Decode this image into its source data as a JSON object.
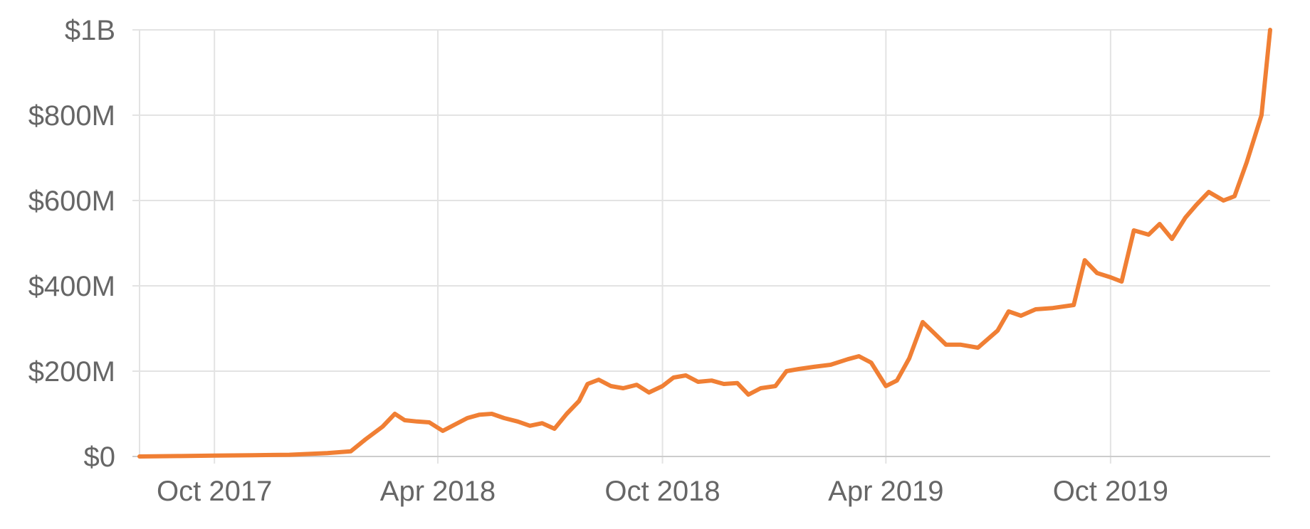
{
  "chart_data": {
    "type": "line",
    "title": "",
    "xlabel": "",
    "ylabel": "",
    "grid": true,
    "legend": "none",
    "series_color": "#f07f34",
    "grid_color": "#e3e3e3",
    "tick_label_color": "#666666",
    "xlim": [
      "2017-08-01",
      "2020-02-08"
    ],
    "ylim": [
      0,
      1000
    ],
    "y_unit": "millions USD",
    "x_ticks": [
      {
        "date": "2017-10-01",
        "label": "Oct 2017"
      },
      {
        "date": "2018-04-01",
        "label": "Apr 2018"
      },
      {
        "date": "2018-10-01",
        "label": "Oct 2018"
      },
      {
        "date": "2019-04-01",
        "label": "Apr 2019"
      },
      {
        "date": "2019-10-01",
        "label": "Oct 2019"
      }
    ],
    "y_ticks": [
      {
        "value": 0,
        "label": "$0"
      },
      {
        "value": 200,
        "label": "$200M"
      },
      {
        "value": 400,
        "label": "$400M"
      },
      {
        "value": 600,
        "label": "$600M"
      },
      {
        "value": 800,
        "label": "$800M"
      },
      {
        "value": 1000,
        "label": "$1B"
      }
    ],
    "series": [
      {
        "points": [
          [
            "2017-08-01",
            0
          ],
          [
            "2017-09-01",
            1
          ],
          [
            "2017-10-01",
            2
          ],
          [
            "2017-11-01",
            3
          ],
          [
            "2017-12-01",
            4
          ],
          [
            "2018-01-01",
            8
          ],
          [
            "2018-01-20",
            12
          ],
          [
            "2018-02-01",
            40
          ],
          [
            "2018-02-15",
            70
          ],
          [
            "2018-02-25",
            100
          ],
          [
            "2018-03-05",
            85
          ],
          [
            "2018-03-15",
            82
          ],
          [
            "2018-03-25",
            80
          ],
          [
            "2018-04-05",
            60
          ],
          [
            "2018-04-15",
            75
          ],
          [
            "2018-04-25",
            90
          ],
          [
            "2018-05-05",
            98
          ],
          [
            "2018-05-15",
            100
          ],
          [
            "2018-05-25",
            90
          ],
          [
            "2018-06-05",
            82
          ],
          [
            "2018-06-15",
            72
          ],
          [
            "2018-06-25",
            78
          ],
          [
            "2018-07-05",
            65
          ],
          [
            "2018-07-15",
            100
          ],
          [
            "2018-07-25",
            130
          ],
          [
            "2018-08-01",
            170
          ],
          [
            "2018-08-10",
            180
          ],
          [
            "2018-08-20",
            165
          ],
          [
            "2018-08-30",
            160
          ],
          [
            "2018-09-10",
            168
          ],
          [
            "2018-09-20",
            150
          ],
          [
            "2018-10-01",
            165
          ],
          [
            "2018-10-10",
            185
          ],
          [
            "2018-10-20",
            190
          ],
          [
            "2018-10-30",
            175
          ],
          [
            "2018-11-10",
            178
          ],
          [
            "2018-11-20",
            170
          ],
          [
            "2018-12-01",
            172
          ],
          [
            "2018-12-10",
            145
          ],
          [
            "2018-12-20",
            160
          ],
          [
            "2019-01-01",
            165
          ],
          [
            "2019-01-10",
            200
          ],
          [
            "2019-01-20",
            205
          ],
          [
            "2019-02-01",
            210
          ],
          [
            "2019-02-15",
            215
          ],
          [
            "2019-03-01",
            228
          ],
          [
            "2019-03-10",
            235
          ],
          [
            "2019-03-20",
            220
          ],
          [
            "2019-04-01",
            165
          ],
          [
            "2019-04-10",
            178
          ],
          [
            "2019-04-20",
            230
          ],
          [
            "2019-05-01",
            315
          ],
          [
            "2019-05-10",
            290
          ],
          [
            "2019-05-20",
            262
          ],
          [
            "2019-06-01",
            262
          ],
          [
            "2019-06-15",
            255
          ],
          [
            "2019-07-01",
            295
          ],
          [
            "2019-07-10",
            340
          ],
          [
            "2019-07-20",
            330
          ],
          [
            "2019-08-01",
            345
          ],
          [
            "2019-08-15",
            348
          ],
          [
            "2019-09-01",
            355
          ],
          [
            "2019-09-10",
            460
          ],
          [
            "2019-09-20",
            430
          ],
          [
            "2019-10-01",
            420
          ],
          [
            "2019-10-10",
            410
          ],
          [
            "2019-10-20",
            530
          ],
          [
            "2019-11-01",
            520
          ],
          [
            "2019-11-10",
            545
          ],
          [
            "2019-11-20",
            510
          ],
          [
            "2019-12-01",
            560
          ],
          [
            "2019-12-10",
            590
          ],
          [
            "2019-12-20",
            620
          ],
          [
            "2020-01-01",
            600
          ],
          [
            "2020-01-10",
            610
          ],
          [
            "2020-01-20",
            690
          ],
          [
            "2020-02-01",
            800
          ],
          [
            "2020-02-08",
            1000
          ]
        ]
      }
    ]
  }
}
